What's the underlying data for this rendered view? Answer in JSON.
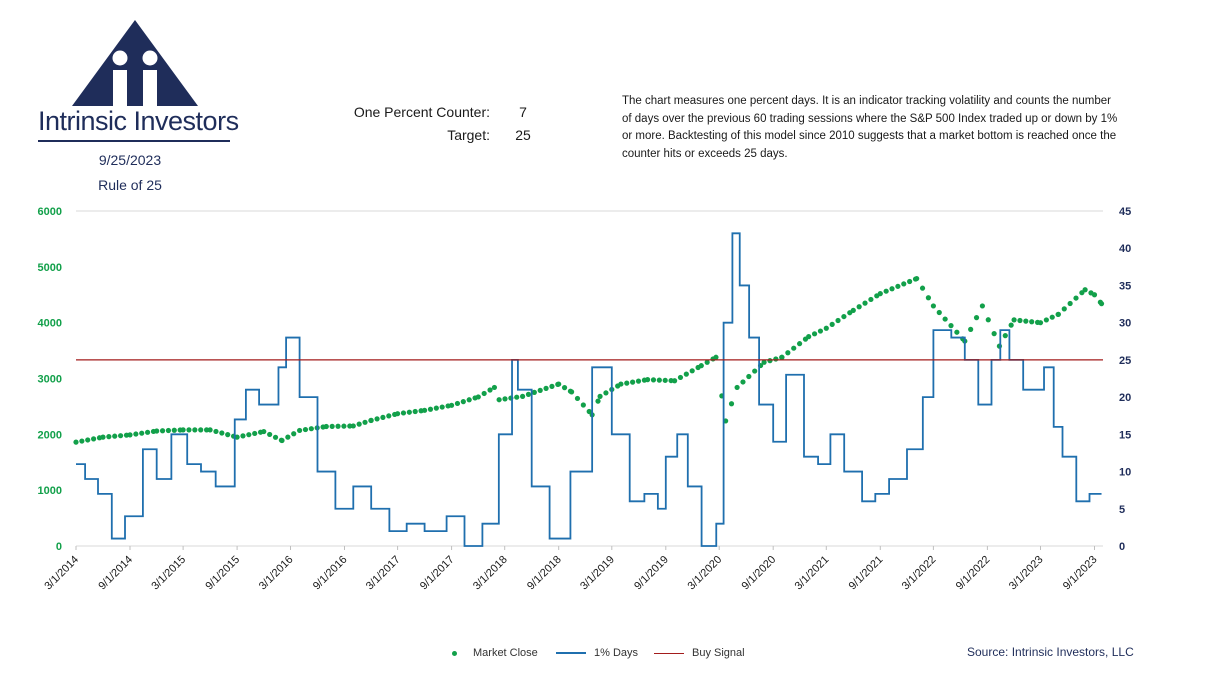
{
  "brand": {
    "name": "Intrinsic Investors"
  },
  "header": {
    "date": "9/25/2023",
    "subtitle": "Rule of 25"
  },
  "counter": {
    "label": "One Percent Counter:",
    "value": "7",
    "target_label": "Target:",
    "target_value": "25"
  },
  "description": "The chart measures one percent days.  It is an indicator tracking volatility and counts the number of days over the previous 60 trading sessions where the S&P 500 Index traded up or down by 1% or more. Backtesting of this model since 2010 suggests that a market bottom is reached once the counter hits or exceeds 25 days.",
  "source": "Source: Intrinsic Investors, LLC",
  "colors": {
    "market": "#12a04a",
    "days": "#1f6fae",
    "signal": "#a31c1c",
    "brand": "#1f2d5a"
  },
  "chart_data": {
    "type": "line",
    "x_start": "2014-03-01",
    "x_end": "2023-09-30",
    "x_tick_labels": [
      "3/1/2014",
      "9/1/2014",
      "3/1/2015",
      "9/1/2015",
      "3/1/2016",
      "9/1/2016",
      "3/1/2017",
      "9/1/2017",
      "3/1/2018",
      "9/1/2018",
      "3/1/2019",
      "9/1/2019",
      "3/1/2020",
      "9/1/2020",
      "3/1/2021",
      "9/1/2021",
      "3/1/2022",
      "9/1/2022",
      "3/1/2023",
      "9/1/2023"
    ],
    "y_left": {
      "min": 0,
      "max": 6000,
      "ticks": [
        "0",
        "1000",
        "2000",
        "3000",
        "4000",
        "5000",
        "6000"
      ]
    },
    "y_right": {
      "min": 0,
      "max": 45,
      "ticks": [
        "0",
        "5",
        "10",
        "15",
        "20",
        "25",
        "30",
        "35",
        "40",
        "45"
      ]
    },
    "grid": "horizontal-top-only",
    "legend_position": "bottom",
    "legend": [
      "Market Close",
      "1% Days",
      "Buy Signal"
    ],
    "buy_signal": 25,
    "market_close": [
      [
        "2014-03-01",
        1860
      ],
      [
        "2014-06-01",
        1950
      ],
      [
        "2014-09-01",
        1990
      ],
      [
        "2014-12-01",
        2060
      ],
      [
        "2015-03-01",
        2080
      ],
      [
        "2015-06-01",
        2080
      ],
      [
        "2015-09-01",
        1950
      ],
      [
        "2015-12-01",
        2050
      ],
      [
        "2016-02-01",
        1890
      ],
      [
        "2016-04-01",
        2070
      ],
      [
        "2016-07-01",
        2140
      ],
      [
        "2016-10-01",
        2150
      ],
      [
        "2016-12-01",
        2250
      ],
      [
        "2017-03-01",
        2370
      ],
      [
        "2017-06-01",
        2430
      ],
      [
        "2017-09-01",
        2520
      ],
      [
        "2017-12-01",
        2670
      ],
      [
        "2018-01-25",
        2840
      ],
      [
        "2018-02-10",
        2620
      ],
      [
        "2018-05-01",
        2680
      ],
      [
        "2018-09-01",
        2900
      ],
      [
        "2018-10-15",
        2760
      ],
      [
        "2018-12-24",
        2350
      ],
      [
        "2019-01-20",
        2680
      ],
      [
        "2019-04-01",
        2900
      ],
      [
        "2019-07-01",
        2980
      ],
      [
        "2019-10-01",
        2960
      ],
      [
        "2019-12-31",
        3230
      ],
      [
        "2020-02-19",
        3380
      ],
      [
        "2020-03-23",
        2240
      ],
      [
        "2020-05-01",
        2840
      ],
      [
        "2020-08-01",
        3290
      ],
      [
        "2020-10-01",
        3380
      ],
      [
        "2020-12-31",
        3750
      ],
      [
        "2021-03-01",
        3900
      ],
      [
        "2021-06-01",
        4220
      ],
      [
        "2021-09-01",
        4520
      ],
      [
        "2022-01-03",
        4790
      ],
      [
        "2022-03-01",
        4300
      ],
      [
        "2022-06-16",
        3670
      ],
      [
        "2022-08-15",
        4300
      ],
      [
        "2022-10-12",
        3580
      ],
      [
        "2022-12-01",
        4050
      ],
      [
        "2023-03-01",
        4000
      ],
      [
        "2023-05-01",
        4150
      ],
      [
        "2023-07-31",
        4590
      ],
      [
        "2023-09-01",
        4500
      ],
      [
        "2023-09-25",
        4340
      ]
    ],
    "one_percent_days": [
      [
        "2014-03-01",
        11
      ],
      [
        "2014-04-01",
        9
      ],
      [
        "2014-05-15",
        7
      ],
      [
        "2014-07-01",
        1
      ],
      [
        "2014-08-15",
        4
      ],
      [
        "2014-10-15",
        13
      ],
      [
        "2014-12-01",
        9
      ],
      [
        "2015-01-20",
        15
      ],
      [
        "2015-03-15",
        11
      ],
      [
        "2015-05-01",
        10
      ],
      [
        "2015-06-20",
        8
      ],
      [
        "2015-08-24",
        17
      ],
      [
        "2015-10-01",
        21
      ],
      [
        "2015-11-15",
        19
      ],
      [
        "2016-01-20",
        24
      ],
      [
        "2016-02-15",
        28
      ],
      [
        "2016-04-01",
        20
      ],
      [
        "2016-06-01",
        10
      ],
      [
        "2016-08-01",
        5
      ],
      [
        "2016-10-01",
        8
      ],
      [
        "2016-12-01",
        5
      ],
      [
        "2017-02-01",
        2
      ],
      [
        "2017-04-01",
        3
      ],
      [
        "2017-06-01",
        2
      ],
      [
        "2017-08-15",
        4
      ],
      [
        "2017-10-15",
        0
      ],
      [
        "2017-12-15",
        3
      ],
      [
        "2018-02-09",
        15
      ],
      [
        "2018-03-26",
        25
      ],
      [
        "2018-04-15",
        21
      ],
      [
        "2018-06-01",
        8
      ],
      [
        "2018-08-01",
        1
      ],
      [
        "2018-10-11",
        10
      ],
      [
        "2018-12-24",
        24
      ],
      [
        "2019-01-20",
        24
      ],
      [
        "2019-03-01",
        15
      ],
      [
        "2019-05-01",
        6
      ],
      [
        "2019-06-20",
        7
      ],
      [
        "2019-08-05",
        5
      ],
      [
        "2019-09-01",
        12
      ],
      [
        "2019-10-10",
        15
      ],
      [
        "2019-11-15",
        8
      ],
      [
        "2020-01-01",
        0
      ],
      [
        "2020-02-20",
        3
      ],
      [
        "2020-03-16",
        30
      ],
      [
        "2020-04-15",
        42
      ],
      [
        "2020-05-10",
        35
      ],
      [
        "2020-06-11",
        28
      ],
      [
        "2020-07-15",
        19
      ],
      [
        "2020-09-01",
        14
      ],
      [
        "2020-10-15",
        23
      ],
      [
        "2020-12-15",
        12
      ],
      [
        "2021-02-01",
        11
      ],
      [
        "2021-03-15",
        15
      ],
      [
        "2021-05-01",
        10
      ],
      [
        "2021-07-01",
        6
      ],
      [
        "2021-08-15",
        7
      ],
      [
        "2021-10-01",
        9
      ],
      [
        "2021-12-01",
        13
      ],
      [
        "2022-01-24",
        20
      ],
      [
        "2022-03-01",
        29
      ],
      [
        "2022-05-01",
        28
      ],
      [
        "2022-06-16",
        25
      ],
      [
        "2022-08-01",
        19
      ],
      [
        "2022-09-15",
        25
      ],
      [
        "2022-10-15",
        29
      ],
      [
        "2022-11-15",
        25
      ],
      [
        "2023-01-01",
        21
      ],
      [
        "2023-03-13",
        24
      ],
      [
        "2023-04-15",
        16
      ],
      [
        "2023-05-15",
        12
      ],
      [
        "2023-07-01",
        6
      ],
      [
        "2023-08-15",
        7
      ],
      [
        "2023-09-25",
        7
      ]
    ]
  }
}
